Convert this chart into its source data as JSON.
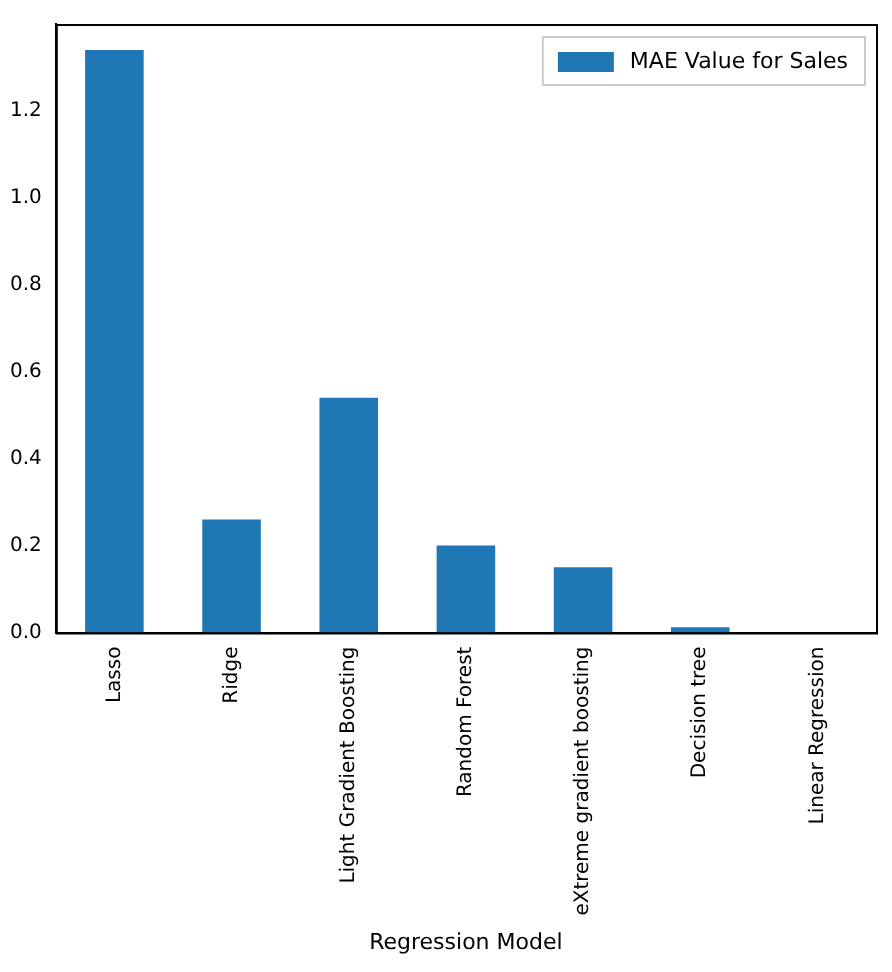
{
  "chart_data": {
    "type": "bar",
    "xlabel": "Regression Model",
    "categories": [
      "Lasso",
      "Ridge",
      "Light Gradient Boosting",
      "Random Forest",
      "eXtreme gradient boosting",
      "Decision tree",
      "Linear Regression"
    ],
    "series": [
      {
        "name": "MAE Value for Sales",
        "color": "#1f77b4",
        "values": [
          1.34,
          0.26,
          0.54,
          0.2,
          0.15,
          0.012,
          0
        ]
      }
    ],
    "ylim": [
      0,
      1.4
    ],
    "yticks": [
      {
        "value": 0,
        "label": "0.0"
      },
      {
        "value": 0.2,
        "label": "0.2"
      },
      {
        "value": 0.4,
        "label": "0.4"
      },
      {
        "value": 0.6,
        "label": "0.6"
      },
      {
        "value": 0.8,
        "label": "0.8"
      },
      {
        "value": 1.0,
        "label": "1.0"
      },
      {
        "value": 1.2,
        "label": "1.2"
      }
    ],
    "grid": false,
    "legend": "top right"
  }
}
